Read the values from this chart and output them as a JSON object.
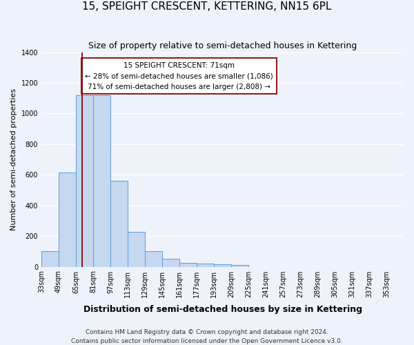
{
  "title": "15, SPEIGHT CRESCENT, KETTERING, NN15 6PL",
  "subtitle": "Size of property relative to semi-detached houses in Kettering",
  "xlabel": "Distribution of semi-detached houses by size in Kettering",
  "ylabel": "Number of semi-detached properties",
  "bin_labels": [
    "33sqm",
    "49sqm",
    "65sqm",
    "81sqm",
    "97sqm",
    "113sqm",
    "129sqm",
    "145sqm",
    "161sqm",
    "177sqm",
    "193sqm",
    "209sqm",
    "225sqm",
    "241sqm",
    "257sqm",
    "273sqm",
    "289sqm",
    "305sqm",
    "321sqm",
    "337sqm",
    "353sqm"
  ],
  "bin_edges": [
    33,
    49,
    65,
    81,
    97,
    113,
    129,
    145,
    161,
    177,
    193,
    209,
    225,
    241,
    257,
    273,
    289,
    305,
    321,
    337,
    353,
    369
  ],
  "bar_heights": [
    100,
    615,
    1120,
    1120,
    560,
    228,
    103,
    50,
    25,
    20,
    18,
    10,
    0,
    0,
    0,
    0,
    0,
    0,
    0,
    0,
    0
  ],
  "bar_color": "#c5d8f0",
  "bar_edge_color": "#5b9bd5",
  "red_line_x": 71,
  "ylim": [
    0,
    1400
  ],
  "yticks": [
    0,
    200,
    400,
    600,
    800,
    1000,
    1200,
    1400
  ],
  "annotation_box_text": "15 SPEIGHT CRESCENT: 71sqm\n← 28% of semi-detached houses are smaller (1,086)\n71% of semi-detached houses are larger (2,808) →",
  "footer_line1": "Contains HM Land Registry data © Crown copyright and database right 2024.",
  "footer_line2": "Contains public sector information licensed under the Open Government Licence v3.0.",
  "background_color": "#eef2fa",
  "grid_color": "#ffffff",
  "title_fontsize": 11,
  "subtitle_fontsize": 9,
  "xlabel_fontsize": 9,
  "ylabel_fontsize": 8,
  "tick_fontsize": 7,
  "footer_fontsize": 6.5,
  "annot_fontsize": 7.5
}
